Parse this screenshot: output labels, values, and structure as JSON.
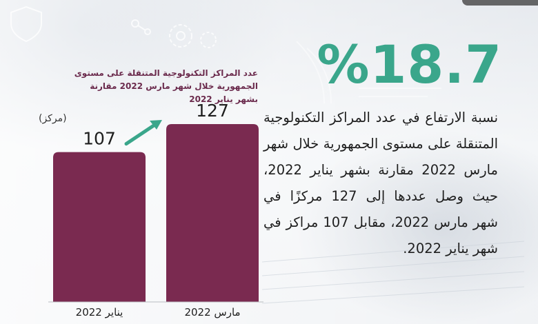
{
  "headline": "%18.7",
  "description": "نسبة الارتفاع في عدد المراكز التكنولوجية المتنقلة على مستوى الجمهورية خلال شهر مارس 2022 مقارنة بشهر يناير 2022، حيث وصل عددها إلى 127 مركزًا في شهر مارس 2022، مقابل 107 مراكز في شهر يناير 2022.",
  "chart_data": {
    "type": "bar",
    "title": "عدد المراكز التكنولوجية المتنقلة على مستوى الجمهورية خلال شهر مارس 2022 مقارنة بشهر يناير 2022",
    "unit_label": "(مركز)",
    "categories": [
      "يناير 2022",
      "مارس 2022"
    ],
    "values": [
      107,
      127
    ],
    "value_labels": [
      "107",
      "127"
    ],
    "trend_arrow": "up",
    "ylim": [
      0,
      127
    ],
    "colors": {
      "bar": "#7a2a50",
      "arrow": "#3aa68b",
      "accent": "#3aa68b"
    }
  }
}
